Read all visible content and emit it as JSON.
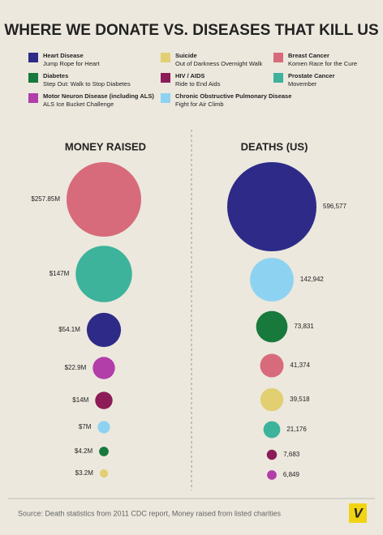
{
  "title": "WHERE WE DONATE VS. DISEASES THAT KILL US",
  "legend": [
    {
      "name": "Heart Disease",
      "event": "Jump Rope for Heart",
      "color": "#2e2b88"
    },
    {
      "name": "Diabetes",
      "event": "Step Out: Walk to Stop Diabetes",
      "color": "#17793b"
    },
    {
      "name": "Motor Neuron Disease (including ALS)",
      "event": "ALS Ice Bucket Challenge",
      "color": "#b23ea9"
    },
    {
      "name": "Suicide",
      "event": "Out of Darkness Overnight Walk",
      "color": "#e2cf72"
    },
    {
      "name": "HIV / AIDS",
      "event": "Ride to End Aids",
      "color": "#8b1c57"
    },
    {
      "name": "Chronic Obstructive Pulmonary Disease",
      "event": "Fight for Air Climb",
      "color": "#8dd3f1"
    },
    {
      "name": "Breast Cancer",
      "event": "Komen Race for the Cure",
      "color": "#d76b7b"
    },
    {
      "name": "Prostate Cancer",
      "event": "Movember",
      "color": "#3db39b"
    }
  ],
  "chart_data": [
    {
      "type": "bubble",
      "title": "MONEY RAISED",
      "values": [
        257850000,
        147000000,
        54100000,
        22900000,
        14000000,
        7000000,
        4200000,
        3200000
      ],
      "value_labels": [
        "$257.85M",
        "$147M",
        "$54.1M",
        "$22.9M",
        "$14M",
        "$7M",
        "$4.2M",
        "$3.2M"
      ],
      "colors": [
        "#d76b7b",
        "#3db39b",
        "#2e2b88",
        "#b23ea9",
        "#8b1c57",
        "#8dd3f1",
        "#17793b",
        "#e2cf72"
      ]
    },
    {
      "type": "bubble",
      "title": "DEATHS (US)",
      "values": [
        596577,
        142942,
        73831,
        41374,
        39518,
        21176,
        7683,
        6849
      ],
      "value_labels": [
        "596,577",
        "142,942",
        "73,831",
        "41,374",
        "39,518",
        "21,176",
        "7,683",
        "6,849"
      ],
      "colors": [
        "#2e2b88",
        "#8dd3f1",
        "#17793b",
        "#d76b7b",
        "#e2cf72",
        "#3db39b",
        "#8b1c57",
        "#b23ea9"
      ]
    }
  ],
  "source": "Source: Death statistics from 2011 CDC report, Money raised from listed charities",
  "logo": "V"
}
